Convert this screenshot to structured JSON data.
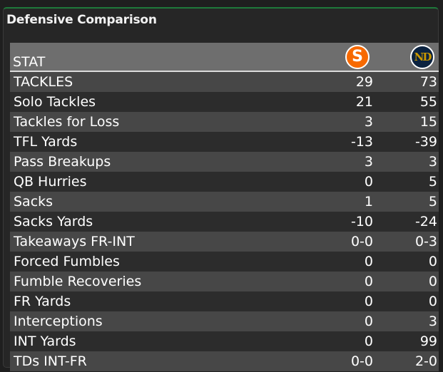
{
  "title": "Defensive Comparison",
  "header": {
    "stat_label": "STAT",
    "team_a": {
      "logo_icon": "syracuse-s-logo-icon",
      "logo_text": "S",
      "color": "#f76900"
    },
    "team_b": {
      "logo_icon": "notre-dame-nd-logo-icon",
      "logo_text": "ND",
      "color": "#0c2340"
    }
  },
  "rows": [
    {
      "stat": "TACKLES",
      "a": "29",
      "b": "73"
    },
    {
      "stat": "Solo Tackles",
      "a": "21",
      "b": "55"
    },
    {
      "stat": "Tackles for Loss",
      "a": "3",
      "b": "15"
    },
    {
      "stat": "TFL Yards",
      "a": "-13",
      "b": "-39"
    },
    {
      "stat": "Pass Breakups",
      "a": "3",
      "b": "3"
    },
    {
      "stat": "QB Hurries",
      "a": "0",
      "b": "5"
    },
    {
      "stat": "Sacks",
      "a": "1",
      "b": "5"
    },
    {
      "stat": "Sacks Yards",
      "a": "-10",
      "b": "-24"
    },
    {
      "stat": "Takeaways FR-INT",
      "a": "0-0",
      "b": "0-3"
    },
    {
      "stat": "Forced Fumbles",
      "a": "0",
      "b": "0"
    },
    {
      "stat": "Fumble Recoveries",
      "a": "0",
      "b": "0"
    },
    {
      "stat": "FR Yards",
      "a": "0",
      "b": "0"
    },
    {
      "stat": "Interceptions",
      "a": "0",
      "b": "3"
    },
    {
      "stat": "INT Yards",
      "a": "0",
      "b": "99"
    },
    {
      "stat": "TDs INT-FR",
      "a": "0-0",
      "b": "2-0"
    }
  ]
}
